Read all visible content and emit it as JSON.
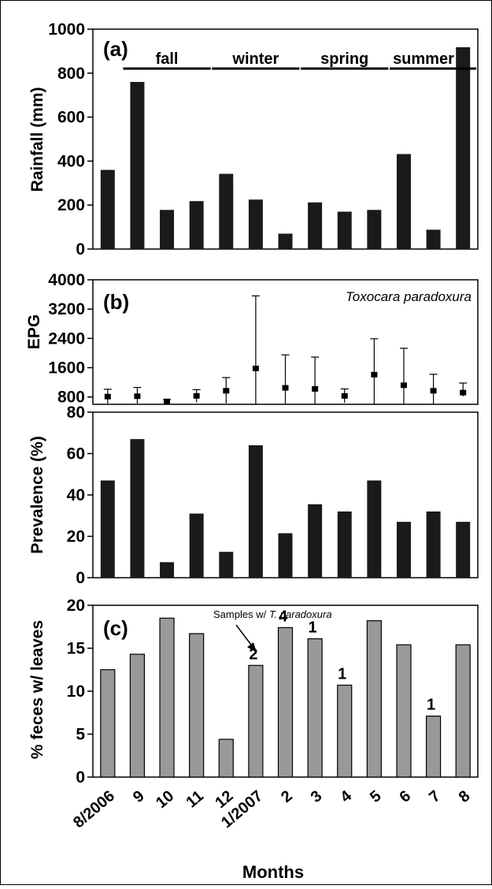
{
  "colors": {
    "bar_dark": "#1a1a1a",
    "bar_gray": "#999999",
    "axis": "#000000"
  },
  "chart_data": [
    {
      "id": "a",
      "type": "bar",
      "panel_label": "(a)",
      "ylabel": "Rainfall (mm)",
      "ylim": [
        0,
        1000
      ],
      "yticks": [
        "0",
        "200",
        "400",
        "600",
        "800",
        "1000"
      ],
      "categories": [
        "8/2006",
        "9",
        "10",
        "11",
        "12",
        "1/2007",
        "2",
        "3",
        "4",
        "5",
        "6",
        "7",
        "8"
      ],
      "values": [
        360,
        760,
        178,
        218,
        342,
        225,
        70,
        212,
        170,
        178,
        432,
        88,
        918
      ],
      "season_labels": [
        {
          "label": "fall",
          "from": "9",
          "to": "11"
        },
        {
          "label": "winter",
          "from": "12",
          "to": "2"
        },
        {
          "label": "spring",
          "from": "3",
          "to": "5"
        },
        {
          "label": "summer",
          "from": "6",
          "to": "8"
        }
      ]
    },
    {
      "id": "b_epg",
      "type": "scatter",
      "panel_label": "(b)",
      "annotation": "Toxocara paradoxura",
      "ylabel": "EPG",
      "ylim": [
        600,
        4000
      ],
      "yticks": [
        "800",
        "1600",
        "2400",
        "3200",
        "4000"
      ],
      "categories": [
        "8/2006",
        "9",
        "10",
        "11",
        "12",
        "1/2007",
        "2",
        "3",
        "4",
        "5",
        "6",
        "7",
        "8"
      ],
      "values": [
        810,
        820,
        680,
        830,
        970,
        1580,
        1050,
        1020,
        830,
        1410,
        1120,
        970,
        920
      ],
      "error_upper": [
        1010,
        1060,
        730,
        1000,
        1330,
        3560,
        1950,
        1890,
        1020,
        2390,
        2130,
        1420,
        1180
      ],
      "error_lower": [
        620,
        620,
        640,
        650,
        630,
        600,
        600,
        600,
        640,
        600,
        600,
        600,
        820
      ]
    },
    {
      "id": "b_prev",
      "type": "bar",
      "ylabel": "Prevalence (%)",
      "ylim": [
        0,
        80
      ],
      "yticks": [
        "0",
        "20",
        "40",
        "60",
        "80"
      ],
      "categories": [
        "8/2006",
        "9",
        "10",
        "11",
        "12",
        "1/2007",
        "2",
        "3",
        "4",
        "5",
        "6",
        "7",
        "8"
      ],
      "values": [
        47,
        67,
        7.5,
        31,
        12.5,
        64,
        21.5,
        35.5,
        32,
        47,
        27,
        32,
        27
      ]
    },
    {
      "id": "c",
      "type": "bar",
      "panel_label": "(c)",
      "ylabel": "% feces w/ leaves",
      "xlabel": "Months",
      "ylim": [
        0,
        20
      ],
      "yticks": [
        "0",
        "5",
        "10",
        "15",
        "20"
      ],
      "categories": [
        "8/2006",
        "9",
        "10",
        "11",
        "12",
        "1/2007",
        "2",
        "3",
        "4",
        "5",
        "6",
        "7",
        "8"
      ],
      "values": [
        12.5,
        14.3,
        18.5,
        16.7,
        4.4,
        13.0,
        17.4,
        16.1,
        10.7,
        18.2,
        15.4,
        7.1,
        15.4
      ],
      "count_labels": [
        "",
        "",
        "",
        "",
        "",
        "2",
        "4",
        "1",
        "1",
        "",
        "",
        "1",
        ""
      ],
      "annotation_prefix": "Samples w/ ",
      "annotation_italic": "T. paradoxura"
    }
  ]
}
